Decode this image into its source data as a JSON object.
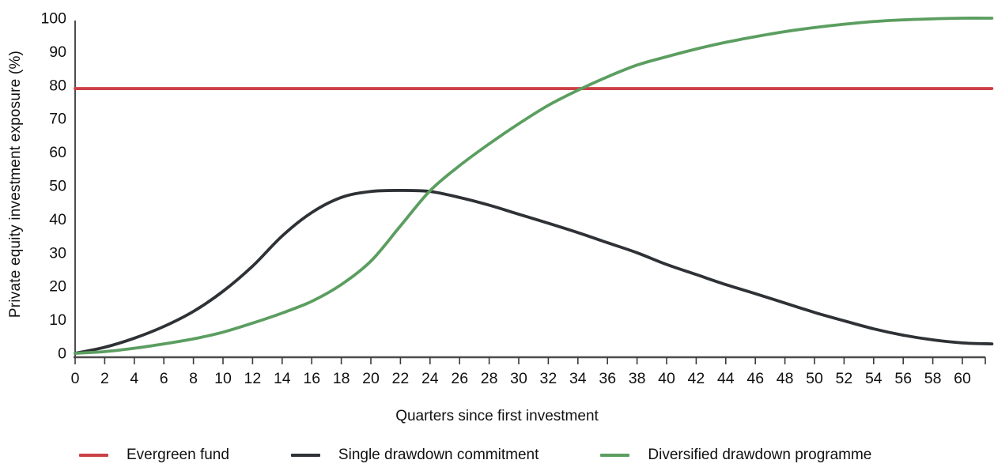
{
  "figure": {
    "y_axis_label": "Private equity investment exposure (%)",
    "x_axis_label": "Quarters since first investment"
  },
  "colors": {
    "evergreen_red": "#cb4045",
    "single_drawdown_black": "#2e3135",
    "diversified_green": "#5b9e60",
    "axis": "#4c4c4c",
    "tick": "#3a3a3a",
    "text": "#111111"
  },
  "legend": {
    "items": [
      {
        "label": "Evergreen fund",
        "color": "#cb4045"
      },
      {
        "label": "Single drawdown commitment",
        "color": "#2e3135"
      },
      {
        "label": "Diversified drawdown programme",
        "color": "#5b9e60"
      }
    ]
  },
  "chart_data": {
    "type": "line",
    "title": "",
    "xlabel": "Quarters since first investment",
    "ylabel": "Private equity investment exposure (%)",
    "xlim": [
      0,
      62
    ],
    "ylim": [
      0,
      100
    ],
    "grid": false,
    "legend_position": "bottom",
    "x_ticks": [
      0,
      2,
      4,
      6,
      8,
      10,
      12,
      14,
      16,
      18,
      20,
      22,
      24,
      26,
      28,
      30,
      32,
      34,
      36,
      38,
      40,
      42,
      44,
      46,
      48,
      50,
      52,
      54,
      56,
      58,
      60
    ],
    "y_ticks": [
      0,
      10,
      20,
      30,
      40,
      50,
      60,
      70,
      80,
      90,
      100
    ],
    "x": [
      0,
      2,
      4,
      6,
      8,
      10,
      12,
      14,
      16,
      18,
      20,
      22,
      24,
      26,
      28,
      30,
      32,
      34,
      36,
      38,
      40,
      42,
      44,
      46,
      48,
      50,
      52,
      54,
      56,
      58,
      60,
      62
    ],
    "series": [
      {
        "name": "Evergreen fund",
        "color": "#cb4045",
        "values": [
          79,
          79,
          79,
          79,
          79,
          79,
          79,
          79,
          79,
          79,
          79,
          79,
          79,
          79,
          79,
          79,
          79,
          79,
          79,
          79,
          79,
          79,
          79,
          79,
          79,
          79,
          79,
          79,
          79,
          79,
          79,
          79
        ]
      },
      {
        "name": "Single drawdown commitment",
        "color": "#2e3135",
        "values": [
          0,
          1.8,
          4.5,
          8,
          12.5,
          18.5,
          26,
          35,
          42,
          46.5,
          48.3,
          48.6,
          48.3,
          46.5,
          44.2,
          41.5,
          38.8,
          36,
          33,
          30,
          26.5,
          23.5,
          20.5,
          17.8,
          15,
          12.2,
          9.7,
          7.3,
          5.4,
          4,
          3.1,
          2.8
        ]
      },
      {
        "name": "Diversified drawdown programme",
        "color": "#5b9e60",
        "values": [
          0,
          0.5,
          1.5,
          2.8,
          4.3,
          6.3,
          9,
          12,
          15.5,
          20.5,
          27.5,
          38,
          48.5,
          56,
          62.5,
          68.5,
          74,
          78.5,
          82.5,
          86,
          88.5,
          90.8,
          92.8,
          94.5,
          96,
          97.2,
          98.2,
          99,
          99.5,
          99.8,
          100,
          100
        ]
      }
    ]
  }
}
